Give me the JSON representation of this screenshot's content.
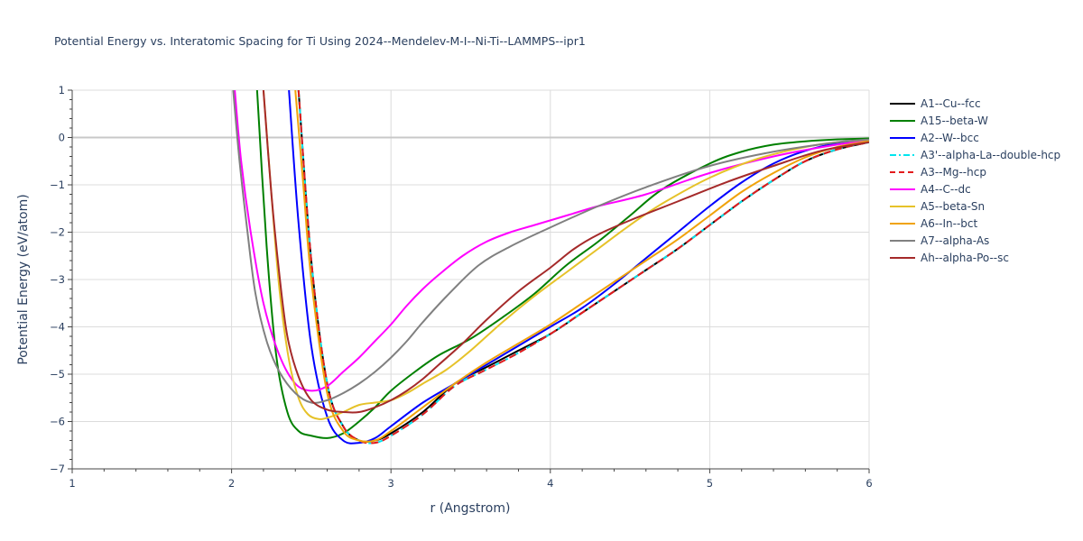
{
  "chart_data": {
    "type": "line",
    "title": "Potential Energy vs. Interatomic Spacing for Ti Using 2024--Mendelev-M-I--Ni-Ti--LAMMPS--ipr1",
    "xlabel": "r (Angstrom)",
    "ylabel": "Potential Energy (eV/atom)",
    "xlim": [
      1,
      6
    ],
    "ylim": [
      -7,
      1
    ],
    "xticks": [
      1,
      2,
      3,
      4,
      5,
      6
    ],
    "xtick_labels": [
      "1",
      "2",
      "3",
      "4",
      "5",
      "6"
    ],
    "yticks": [
      1,
      0,
      -1,
      -2,
      -3,
      -4,
      -5,
      -6,
      -7
    ],
    "ytick_labels": [
      "1",
      "0",
      "−1",
      "−2",
      "−3",
      "−4",
      "−5",
      "−6",
      "−7"
    ],
    "grid": true,
    "legend_position": "right",
    "series": [
      {
        "name": "A1--Cu--fcc",
        "color": "#000000",
        "dash": "solid",
        "x": [
          2.42,
          2.5,
          2.6,
          2.7,
          2.8,
          2.9,
          3.0,
          3.2,
          3.4,
          3.6,
          3.8,
          4.0,
          4.2,
          4.4,
          4.6,
          4.8,
          5.0,
          5.2,
          5.4,
          5.6,
          5.8,
          6.0
        ],
        "y": [
          1.0,
          -2.6,
          -5.2,
          -6.1,
          -6.4,
          -6.4,
          -6.25,
          -5.8,
          -5.2,
          -4.85,
          -4.5,
          -4.15,
          -3.7,
          -3.25,
          -2.8,
          -2.35,
          -1.85,
          -1.35,
          -0.9,
          -0.5,
          -0.25,
          -0.1
        ]
      },
      {
        "name": "A15--beta-W",
        "color": "#008000",
        "dash": "solid",
        "x": [
          2.16,
          2.22,
          2.28,
          2.35,
          2.42,
          2.5,
          2.6,
          2.7,
          2.8,
          2.9,
          3.0,
          3.15,
          3.3,
          3.5,
          3.7,
          3.9,
          4.1,
          4.3,
          4.5,
          4.7,
          5.0,
          5.2,
          5.4,
          5.6,
          5.8,
          6.0
        ],
        "y": [
          1.0,
          -2.3,
          -4.6,
          -5.8,
          -6.2,
          -6.3,
          -6.35,
          -6.25,
          -6.0,
          -5.7,
          -5.35,
          -4.95,
          -4.6,
          -4.25,
          -3.8,
          -3.3,
          -2.7,
          -2.2,
          -1.65,
          -1.1,
          -0.55,
          -0.3,
          -0.15,
          -0.08,
          -0.04,
          -0.02
        ]
      },
      {
        "name": "A2--W--bcc",
        "color": "#0000ff",
        "dash": "solid",
        "x": [
          2.36,
          2.42,
          2.5,
          2.6,
          2.7,
          2.8,
          2.9,
          3.0,
          3.2,
          3.4,
          3.6,
          3.8,
          4.0,
          4.2,
          4.4,
          4.6,
          4.8,
          5.0,
          5.2,
          5.4,
          5.6,
          5.8,
          6.0
        ],
        "y": [
          1.0,
          -1.8,
          -4.4,
          -5.9,
          -6.4,
          -6.45,
          -6.35,
          -6.1,
          -5.6,
          -5.2,
          -4.8,
          -4.4,
          -4.0,
          -3.6,
          -3.1,
          -2.55,
          -2.0,
          -1.45,
          -0.95,
          -0.55,
          -0.28,
          -0.12,
          -0.05
        ]
      },
      {
        "name": "A3'--alpha-La--double-hcp",
        "color": "#00e5ee",
        "dash": "dashdot",
        "x": [
          2.42,
          2.5,
          2.6,
          2.7,
          2.8,
          2.9,
          3.0,
          3.2,
          3.4,
          3.6,
          3.8,
          4.0,
          4.2,
          4.4,
          4.6,
          4.8,
          5.0,
          5.2,
          5.4,
          5.6,
          5.8,
          6.0
        ],
        "y": [
          1.0,
          -2.6,
          -5.2,
          -6.1,
          -6.4,
          -6.45,
          -6.3,
          -5.85,
          -5.25,
          -4.9,
          -4.55,
          -4.15,
          -3.7,
          -3.25,
          -2.8,
          -2.35,
          -1.85,
          -1.35,
          -0.9,
          -0.5,
          -0.25,
          -0.1
        ]
      },
      {
        "name": "A3--Mg--hcp",
        "color": "#e31a1c",
        "dash": "dash",
        "x": [
          2.42,
          2.5,
          2.6,
          2.7,
          2.8,
          2.9,
          3.0,
          3.2,
          3.4,
          3.6,
          3.8,
          4.0,
          4.2,
          4.4,
          4.6,
          4.8,
          5.0,
          5.2,
          5.4,
          5.6,
          5.8,
          6.0
        ],
        "y": [
          1.0,
          -2.6,
          -5.2,
          -6.1,
          -6.4,
          -6.45,
          -6.3,
          -5.85,
          -5.25,
          -4.9,
          -4.55,
          -4.15,
          -3.7,
          -3.25,
          -2.8,
          -2.35,
          -1.85,
          -1.35,
          -0.9,
          -0.5,
          -0.25,
          -0.1
        ]
      },
      {
        "name": "A4--C--dc",
        "color": "#ff00ff",
        "dash": "solid",
        "x": [
          2.02,
          2.06,
          2.12,
          2.2,
          2.3,
          2.4,
          2.5,
          2.6,
          2.7,
          2.8,
          2.9,
          3.0,
          3.1,
          3.2,
          3.3,
          3.45,
          3.6,
          3.75,
          3.9,
          4.1,
          4.3,
          4.6,
          5.0,
          5.4,
          5.8,
          6.0
        ],
        "y": [
          1.0,
          -0.5,
          -2.0,
          -3.5,
          -4.6,
          -5.2,
          -5.35,
          -5.25,
          -4.95,
          -4.65,
          -4.3,
          -3.95,
          -3.55,
          -3.2,
          -2.9,
          -2.5,
          -2.2,
          -2.0,
          -1.85,
          -1.65,
          -1.45,
          -1.2,
          -0.75,
          -0.4,
          -0.15,
          -0.08
        ]
      },
      {
        "name": "A5--beta-Sn",
        "color": "#e6c229",
        "dash": "solid",
        "x": [
          2.2,
          2.25,
          2.3,
          2.36,
          2.42,
          2.48,
          2.55,
          2.62,
          2.7,
          2.8,
          2.9,
          3.0,
          3.1,
          3.2,
          3.35,
          3.5,
          3.7,
          3.9,
          4.1,
          4.3,
          4.5,
          4.7,
          5.0,
          5.3,
          5.6,
          5.8,
          6.0
        ],
        "y": [
          1.0,
          -1.2,
          -3.2,
          -4.7,
          -5.5,
          -5.85,
          -5.95,
          -5.9,
          -5.8,
          -5.65,
          -5.6,
          -5.55,
          -5.4,
          -5.2,
          -4.9,
          -4.5,
          -3.9,
          -3.35,
          -2.85,
          -2.35,
          -1.85,
          -1.4,
          -0.85,
          -0.45,
          -0.2,
          -0.1,
          -0.05
        ]
      },
      {
        "name": "A6--In--bct",
        "color": "#f0a30a",
        "dash": "solid",
        "x": [
          2.4,
          2.45,
          2.5,
          2.6,
          2.7,
          2.8,
          2.9,
          3.0,
          3.2,
          3.4,
          3.6,
          3.8,
          4.0,
          4.2,
          4.4,
          4.6,
          4.8,
          5.0,
          5.2,
          5.4,
          5.6,
          5.8,
          6.0
        ],
        "y": [
          1.0,
          -1.0,
          -3.0,
          -5.4,
          -6.2,
          -6.4,
          -6.4,
          -6.2,
          -5.7,
          -5.2,
          -4.75,
          -4.35,
          -3.95,
          -3.5,
          -3.05,
          -2.6,
          -2.15,
          -1.65,
          -1.15,
          -0.75,
          -0.42,
          -0.2,
          -0.08
        ]
      },
      {
        "name": "A7--alpha-As",
        "color": "#808080",
        "dash": "solid",
        "x": [
          2.01,
          2.05,
          2.1,
          2.15,
          2.22,
          2.3,
          2.4,
          2.5,
          2.6,
          2.7,
          2.8,
          2.9,
          3.0,
          3.1,
          3.2,
          3.35,
          3.55,
          3.75,
          4.0,
          4.3,
          4.6,
          5.0,
          5.4,
          5.8,
          6.0
        ],
        "y": [
          1.0,
          -0.5,
          -2.0,
          -3.3,
          -4.3,
          -4.95,
          -5.4,
          -5.6,
          -5.55,
          -5.4,
          -5.2,
          -4.95,
          -4.65,
          -4.3,
          -3.9,
          -3.35,
          -2.7,
          -2.3,
          -1.9,
          -1.45,
          -1.05,
          -0.6,
          -0.3,
          -0.1,
          -0.04
        ]
      },
      {
        "name": "Ah--alpha-Po--sc",
        "color": "#a52a2a",
        "dash": "solid",
        "x": [
          2.2,
          2.25,
          2.3,
          2.35,
          2.42,
          2.5,
          2.6,
          2.7,
          2.8,
          2.9,
          3.0,
          3.1,
          3.2,
          3.3,
          3.45,
          3.6,
          3.8,
          4.0,
          4.15,
          4.3,
          4.5,
          4.8,
          5.1,
          5.4,
          5.7,
          6.0
        ],
        "y": [
          1.0,
          -1.2,
          -2.9,
          -4.2,
          -5.05,
          -5.55,
          -5.75,
          -5.8,
          -5.8,
          -5.7,
          -5.55,
          -5.35,
          -5.1,
          -4.8,
          -4.35,
          -3.85,
          -3.25,
          -2.75,
          -2.35,
          -2.05,
          -1.75,
          -1.35,
          -0.95,
          -0.6,
          -0.28,
          -0.1
        ]
      }
    ]
  }
}
